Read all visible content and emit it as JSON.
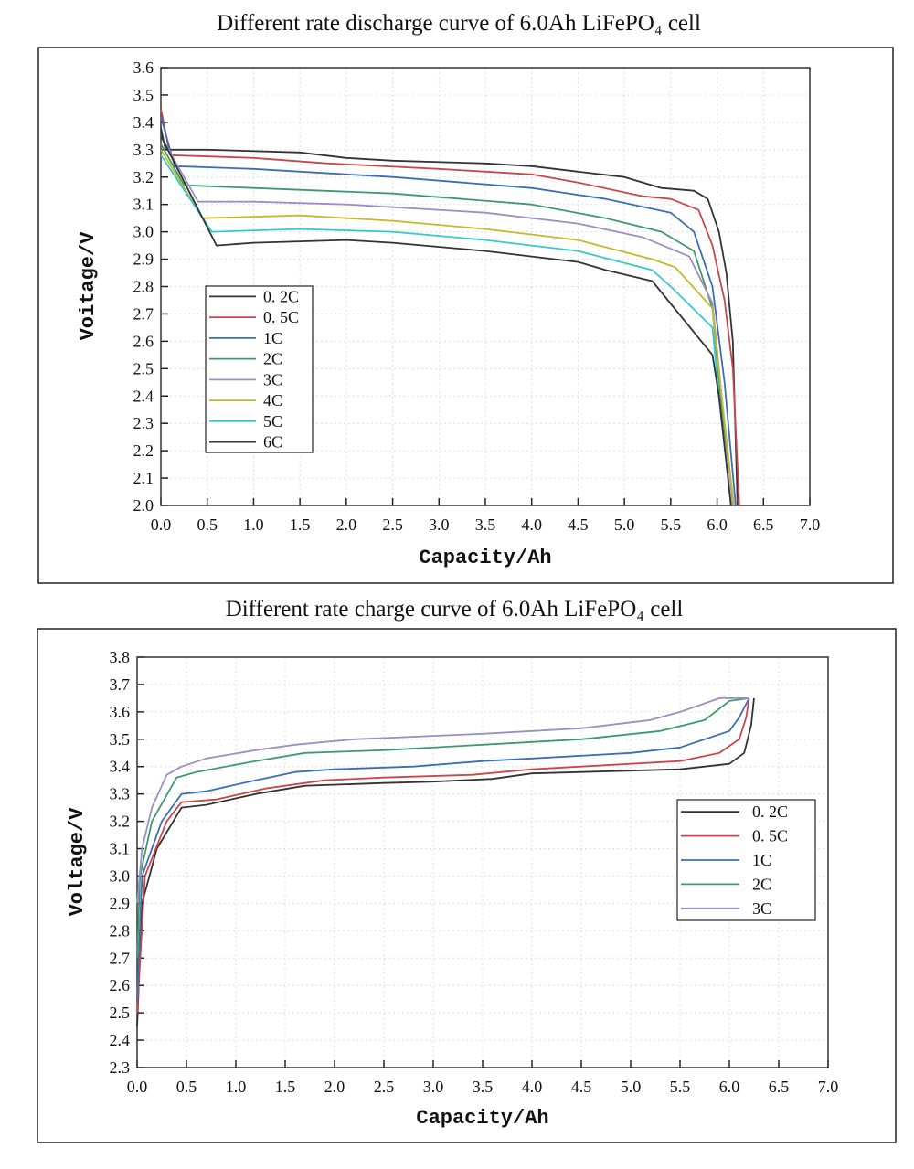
{
  "chart_data": [
    {
      "type": "line",
      "title": "Different rate discharge curve of 6.0Ah LiFePO₄ cell",
      "xlabel": "Capacity/Ah",
      "ylabel": "Voitage/V",
      "xlim": [
        0,
        7.0
      ],
      "ylim": [
        2.0,
        3.6
      ],
      "xticks": [
        "0.0",
        "0.5",
        "1.0",
        "1.5",
        "2.0",
        "2.5",
        "3.0",
        "3.5",
        "4.0",
        "4.5",
        "5.0",
        "5.5",
        "6.0",
        "6.5",
        "7.0"
      ],
      "yticks": [
        "2.0",
        "2.1",
        "2.2",
        "2.3",
        "2.4",
        "2.5",
        "2.6",
        "2.7",
        "2.8",
        "2.9",
        "3.0",
        "3.1",
        "3.2",
        "3.3",
        "3.4",
        "3.5",
        "3.6"
      ],
      "grid": true,
      "legend": "middle-left",
      "series": [
        {
          "name": "0. 2C",
          "color": "#333333",
          "points": [
            [
              0,
              3.38
            ],
            [
              0.05,
              3.3
            ],
            [
              0.5,
              3.3
            ],
            [
              1.5,
              3.29
            ],
            [
              2.0,
              3.27
            ],
            [
              2.5,
              3.26
            ],
            [
              3.5,
              3.25
            ],
            [
              4.0,
              3.24
            ],
            [
              4.5,
              3.22
            ],
            [
              5.0,
              3.2
            ],
            [
              5.4,
              3.16
            ],
            [
              5.75,
              3.15
            ],
            [
              5.9,
              3.12
            ],
            [
              6.02,
              3.0
            ],
            [
              6.1,
              2.85
            ],
            [
              6.17,
              2.6
            ],
            [
              6.22,
              2.0
            ]
          ]
        },
        {
          "name": "0. 5C",
          "color": "#c9474a",
          "points": [
            [
              0,
              3.45
            ],
            [
              0.1,
              3.28
            ],
            [
              1.0,
              3.27
            ],
            [
              1.8,
              3.25
            ],
            [
              3.0,
              3.23
            ],
            [
              4.0,
              3.21
            ],
            [
              4.5,
              3.18
            ],
            [
              5.2,
              3.13
            ],
            [
              5.5,
              3.12
            ],
            [
              5.8,
              3.08
            ],
            [
              5.95,
              2.95
            ],
            [
              6.08,
              2.75
            ],
            [
              6.17,
              2.5
            ],
            [
              6.24,
              2.0
            ]
          ]
        },
        {
          "name": "1C",
          "color": "#3a6fb4",
          "points": [
            [
              0,
              3.42
            ],
            [
              0.15,
              3.24
            ],
            [
              1.0,
              3.23
            ],
            [
              2.5,
              3.2
            ],
            [
              4.0,
              3.16
            ],
            [
              4.8,
              3.12
            ],
            [
              5.5,
              3.07
            ],
            [
              5.75,
              3.0
            ],
            [
              5.95,
              2.8
            ],
            [
              6.08,
              2.45
            ],
            [
              6.2,
              2.0
            ]
          ]
        },
        {
          "name": "2C",
          "color": "#3e9a6e",
          "points": [
            [
              0,
              3.32
            ],
            [
              0.25,
              3.17
            ],
            [
              1.0,
              3.16
            ],
            [
              2.5,
              3.14
            ],
            [
              4.0,
              3.1
            ],
            [
              4.8,
              3.05
            ],
            [
              5.4,
              3.0
            ],
            [
              5.75,
              2.93
            ],
            [
              5.95,
              2.72
            ],
            [
              6.05,
              2.35
            ],
            [
              6.18,
              2.0
            ]
          ]
        },
        {
          "name": "3C",
          "color": "#9b8fc4",
          "points": [
            [
              0,
              3.35
            ],
            [
              0.4,
              3.11
            ],
            [
              1.0,
              3.11
            ],
            [
              2.0,
              3.1
            ],
            [
              3.5,
              3.07
            ],
            [
              4.5,
              3.03
            ],
            [
              5.2,
              2.98
            ],
            [
              5.7,
              2.91
            ],
            [
              5.95,
              2.74
            ],
            [
              6.05,
              2.4
            ],
            [
              6.17,
              2.0
            ]
          ]
        },
        {
          "name": "4C",
          "color": "#c8b82a",
          "points": [
            [
              0,
              3.3
            ],
            [
              0.45,
              3.05
            ],
            [
              1.5,
              3.06
            ],
            [
              2.5,
              3.04
            ],
            [
              3.5,
              3.01
            ],
            [
              4.5,
              2.97
            ],
            [
              5.3,
              2.9
            ],
            [
              5.55,
              2.87
            ],
            [
              5.95,
              2.72
            ],
            [
              6.05,
              2.4
            ],
            [
              6.18,
              2.0
            ]
          ]
        },
        {
          "name": "5C",
          "color": "#35c9d0",
          "points": [
            [
              0,
              3.28
            ],
            [
              0.55,
              3.0
            ],
            [
              1.5,
              3.01
            ],
            [
              2.5,
              3.0
            ],
            [
              3.5,
              2.97
            ],
            [
              4.5,
              2.93
            ],
            [
              5.3,
              2.86
            ],
            [
              5.5,
              2.8
            ],
            [
              5.95,
              2.65
            ],
            [
              6.02,
              2.4
            ],
            [
              6.15,
              2.0
            ]
          ]
        },
        {
          "name": "6C",
          "color": "#333333",
          "points": [
            [
              0,
              3.35
            ],
            [
              0.6,
              2.95
            ],
            [
              1.0,
              2.96
            ],
            [
              2.0,
              2.97
            ],
            [
              2.5,
              2.96
            ],
            [
              3.5,
              2.93
            ],
            [
              4.5,
              2.89
            ],
            [
              4.8,
              2.86
            ],
            [
              5.3,
              2.82
            ],
            [
              5.95,
              2.55
            ],
            [
              6.02,
              2.4
            ],
            [
              6.15,
              2.0
            ]
          ]
        }
      ]
    },
    {
      "type": "line",
      "title": "Different rate charge curve of 6.0Ah LiFePO₄ cell",
      "xlabel": "Capacity/Ah",
      "ylabel": "Voltage/V",
      "xlim": [
        0,
        7.0
      ],
      "ylim": [
        2.3,
        3.8
      ],
      "xticks": [
        "0.0",
        "0.5",
        "1.0",
        "1.5",
        "2.0",
        "2.5",
        "3.0",
        "3.5",
        "4.0",
        "4.5",
        "5.0",
        "5.5",
        "6.0",
        "6.5",
        "7.0"
      ],
      "yticks": [
        "2.3",
        "2.4",
        "2.5",
        "2.6",
        "2.7",
        "2.8",
        "2.9",
        "3.0",
        "3.1",
        "3.2",
        "3.3",
        "3.4",
        "3.5",
        "3.6",
        "3.7",
        "3.8"
      ],
      "grid": true,
      "legend": "middle-right",
      "series": [
        {
          "name": "0. 2C",
          "color": "#333333",
          "points": [
            [
              0,
              2.45
            ],
            [
              0.05,
              2.9
            ],
            [
              0.2,
              3.1
            ],
            [
              0.45,
              3.25
            ],
            [
              0.7,
              3.26
            ],
            [
              1.2,
              3.3
            ],
            [
              1.7,
              3.33
            ],
            [
              2.5,
              3.34
            ],
            [
              3.0,
              3.345
            ],
            [
              3.6,
              3.355
            ],
            [
              4.0,
              3.375
            ],
            [
              4.5,
              3.38
            ],
            [
              5.5,
              3.39
            ],
            [
              6.0,
              3.41
            ],
            [
              6.15,
              3.45
            ],
            [
              6.22,
              3.55
            ],
            [
              6.25,
              3.65
            ]
          ]
        },
        {
          "name": "0. 5C",
          "color": "#c9474a",
          "points": [
            [
              0,
              2.5
            ],
            [
              0.08,
              3.0
            ],
            [
              0.3,
              3.2
            ],
            [
              0.45,
              3.27
            ],
            [
              0.8,
              3.28
            ],
            [
              1.3,
              3.32
            ],
            [
              1.9,
              3.35
            ],
            [
              2.5,
              3.36
            ],
            [
              3.4,
              3.37
            ],
            [
              4.0,
              3.39
            ],
            [
              4.5,
              3.4
            ],
            [
              5.5,
              3.42
            ],
            [
              5.9,
              3.45
            ],
            [
              6.1,
              3.5
            ],
            [
              6.17,
              3.58
            ],
            [
              6.2,
              3.65
            ]
          ]
        },
        {
          "name": "1C",
          "color": "#3a6fb4",
          "points": [
            [
              0,
              2.55
            ],
            [
              0.05,
              3.0
            ],
            [
              0.25,
              3.2
            ],
            [
              0.45,
              3.3
            ],
            [
              0.7,
              3.31
            ],
            [
              1.2,
              3.35
            ],
            [
              1.6,
              3.38
            ],
            [
              2.0,
              3.39
            ],
            [
              2.8,
              3.4
            ],
            [
              3.5,
              3.42
            ],
            [
              4.0,
              3.43
            ],
            [
              5.0,
              3.45
            ],
            [
              5.5,
              3.47
            ],
            [
              6.0,
              3.53
            ],
            [
              6.1,
              3.58
            ],
            [
              6.2,
              3.65
            ]
          ]
        },
        {
          "name": "2C",
          "color": "#3e9a6e",
          "points": [
            [
              0,
              2.7
            ],
            [
              0.03,
              3.0
            ],
            [
              0.15,
              3.2
            ],
            [
              0.4,
              3.36
            ],
            [
              0.6,
              3.38
            ],
            [
              1.2,
              3.42
            ],
            [
              1.7,
              3.45
            ],
            [
              2.5,
              3.46
            ],
            [
              3.5,
              3.48
            ],
            [
              4.5,
              3.5
            ],
            [
              5.3,
              3.53
            ],
            [
              5.75,
              3.57
            ],
            [
              6.0,
              3.64
            ],
            [
              6.2,
              3.65
            ]
          ]
        },
        {
          "name": "3C",
          "color": "#9b8fc4",
          "points": [
            [
              0,
              2.9
            ],
            [
              0.05,
              3.1
            ],
            [
              0.15,
              3.25
            ],
            [
              0.3,
              3.37
            ],
            [
              0.45,
              3.4
            ],
            [
              0.7,
              3.43
            ],
            [
              1.2,
              3.46
            ],
            [
              1.6,
              3.48
            ],
            [
              2.2,
              3.5
            ],
            [
              3.5,
              3.52
            ],
            [
              4.5,
              3.54
            ],
            [
              5.2,
              3.57
            ],
            [
              5.5,
              3.6
            ],
            [
              5.9,
              3.65
            ],
            [
              6.2,
              3.65
            ]
          ]
        }
      ]
    }
  ]
}
